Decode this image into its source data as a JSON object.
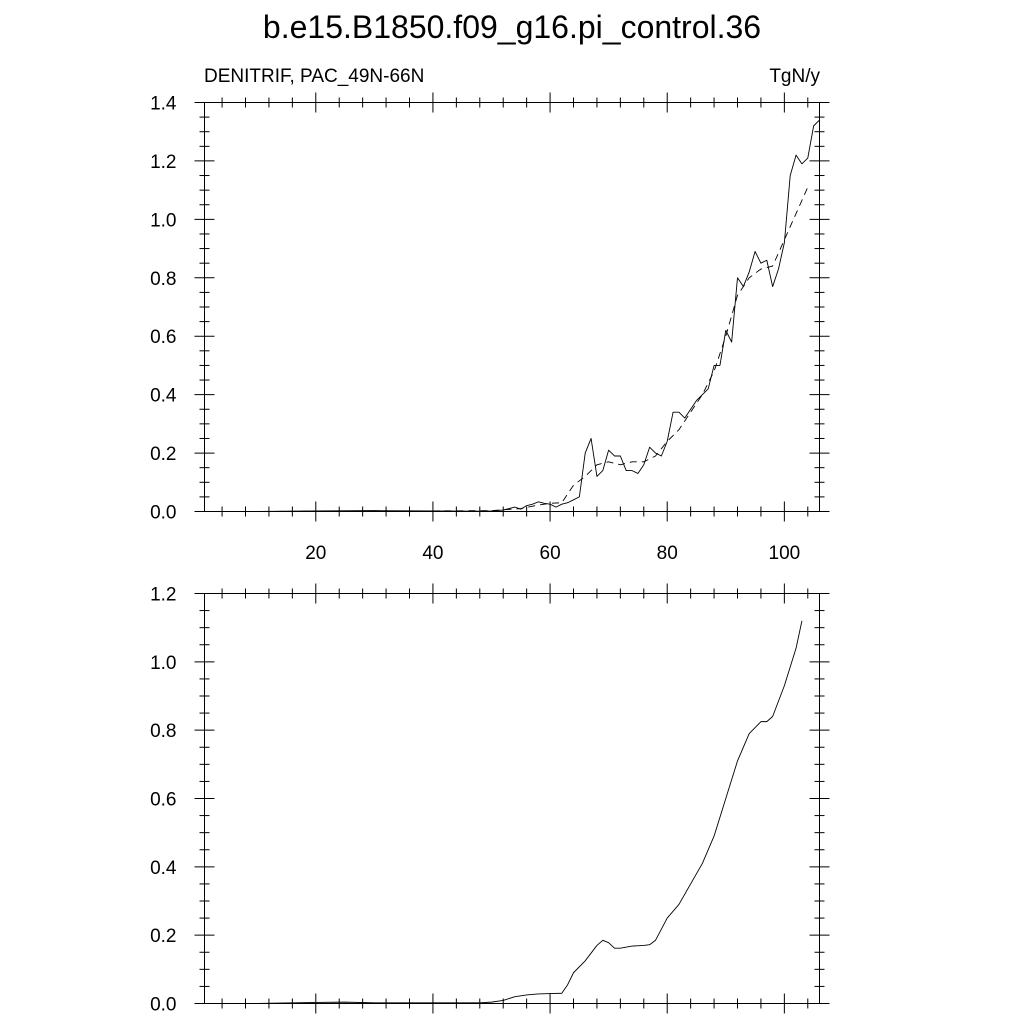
{
  "figure": {
    "title": "b.e15.B1850.f09_g16.pi_control.36"
  },
  "chart_data": [
    {
      "type": "line",
      "subtitle_left": "DENITRIF, PAC_49N-66N",
      "subtitle_right": "TgN/y",
      "xlim": [
        1,
        106
      ],
      "ylim": [
        0,
        1.4
      ],
      "x_ticks": [
        20,
        40,
        60,
        80,
        100
      ],
      "x_tick_labels": [
        "20",
        "40",
        "60",
        "80",
        "100"
      ],
      "y_ticks": [
        0,
        0.2,
        0.4,
        0.6,
        0.8,
        1.0,
        1.2,
        1.4
      ],
      "y_tick_labels": [
        "0.0",
        "0.2",
        "0.4",
        "0.6",
        "0.8",
        "1.0",
        "1.2",
        "1.4"
      ],
      "grid": false,
      "series": [
        {
          "style": "solid",
          "x": [
            1,
            10,
            20,
            30,
            40,
            48,
            50,
            52,
            53,
            54,
            55,
            56,
            57,
            58,
            59,
            60,
            61,
            62,
            63,
            64,
            65,
            66,
            67,
            68,
            69,
            70,
            71,
            72,
            73,
            74,
            75,
            76,
            77,
            78,
            79,
            80,
            81,
            82,
            83,
            84,
            85,
            86,
            87,
            88,
            89,
            90,
            91,
            92,
            93,
            94,
            95,
            96,
            97,
            98,
            99,
            100,
            101,
            102,
            103,
            104,
            105,
            106
          ],
          "y": [
            0.0,
            0.0,
            0.002,
            0.003,
            0.002,
            0.001,
            0.002,
            0.005,
            0.01,
            0.015,
            0.008,
            0.02,
            0.025,
            0.033,
            0.028,
            0.025,
            0.015,
            0.025,
            0.03,
            0.04,
            0.05,
            0.2,
            0.25,
            0.12,
            0.14,
            0.21,
            0.19,
            0.19,
            0.14,
            0.14,
            0.13,
            0.16,
            0.22,
            0.2,
            0.19,
            0.24,
            0.34,
            0.34,
            0.32,
            0.35,
            0.38,
            0.4,
            0.42,
            0.5,
            0.5,
            0.62,
            0.58,
            0.8,
            0.77,
            0.82,
            0.89,
            0.85,
            0.86,
            0.77,
            0.83,
            0.92,
            1.15,
            1.22,
            1.19,
            1.21,
            1.32,
            1.34
          ]
        },
        {
          "style": "dashed",
          "x": [
            1,
            10,
            20,
            30,
            40,
            50,
            55,
            58,
            60,
            62,
            64,
            66,
            68,
            70,
            72,
            74,
            76,
            78,
            80,
            82,
            84,
            86,
            88,
            90,
            92,
            94,
            96,
            98,
            100,
            102,
            104
          ],
          "y": [
            0.0,
            0.0,
            0.001,
            0.002,
            0.002,
            0.003,
            0.01,
            0.022,
            0.028,
            0.03,
            0.09,
            0.12,
            0.16,
            0.17,
            0.16,
            0.17,
            0.17,
            0.19,
            0.24,
            0.28,
            0.34,
            0.4,
            0.48,
            0.6,
            0.74,
            0.8,
            0.83,
            0.84,
            0.93,
            1.02,
            1.11
          ]
        }
      ]
    },
    {
      "type": "line",
      "xlim": [
        1,
        106
      ],
      "ylim": [
        0,
        1.2
      ],
      "x_ticks": [
        20,
        40,
        60,
        80,
        100
      ],
      "y_ticks": [
        0,
        0.2,
        0.4,
        0.6,
        0.8,
        1.0,
        1.2
      ],
      "y_tick_labels": [
        "0.0",
        "0.2",
        "0.4",
        "0.6",
        "0.8",
        "1.0",
        "1.2"
      ],
      "grid": false,
      "series": [
        {
          "style": "solid",
          "x": [
            1,
            10,
            20,
            25,
            30,
            40,
            48,
            50,
            52,
            54,
            56,
            58,
            60,
            62,
            63,
            64,
            66,
            68,
            69,
            70,
            71,
            72,
            74,
            76,
            77,
            78,
            80,
            82,
            84,
            86,
            88,
            90,
            92,
            94,
            96,
            97,
            98,
            100,
            102,
            103
          ],
          "y": [
            0.0,
            0.0,
            0.003,
            0.004,
            0.002,
            0.002,
            0.002,
            0.004,
            0.009,
            0.02,
            0.025,
            0.028,
            0.029,
            0.03,
            0.055,
            0.09,
            0.125,
            0.17,
            0.185,
            0.178,
            0.162,
            0.162,
            0.168,
            0.17,
            0.172,
            0.185,
            0.25,
            0.29,
            0.35,
            0.41,
            0.49,
            0.6,
            0.71,
            0.79,
            0.825,
            0.825,
            0.84,
            0.93,
            1.04,
            1.12
          ]
        }
      ]
    }
  ]
}
